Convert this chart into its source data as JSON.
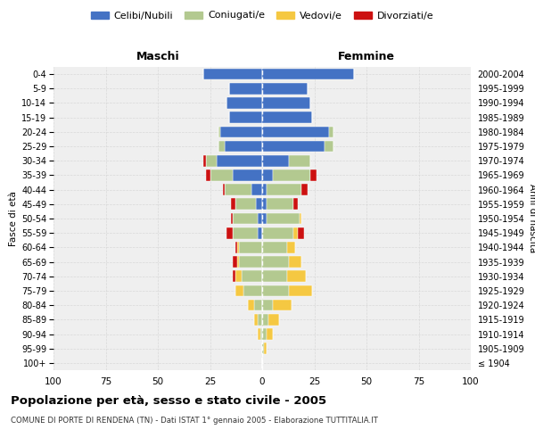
{
  "age_groups": [
    "100+",
    "95-99",
    "90-94",
    "85-89",
    "80-84",
    "75-79",
    "70-74",
    "65-69",
    "60-64",
    "55-59",
    "50-54",
    "45-49",
    "40-44",
    "35-39",
    "30-34",
    "25-29",
    "20-24",
    "15-19",
    "10-14",
    "5-9",
    "0-4"
  ],
  "birth_years": [
    "≤ 1904",
    "1905-1909",
    "1910-1914",
    "1915-1919",
    "1920-1924",
    "1925-1929",
    "1930-1934",
    "1935-1939",
    "1940-1944",
    "1945-1949",
    "1950-1954",
    "1955-1959",
    "1960-1964",
    "1965-1969",
    "1970-1974",
    "1975-1979",
    "1980-1984",
    "1985-1989",
    "1990-1994",
    "1995-1999",
    "2000-2004"
  ],
  "males": {
    "celibi": [
      0,
      0,
      0,
      0,
      0,
      0,
      0,
      0,
      0,
      2,
      2,
      3,
      5,
      14,
      22,
      18,
      20,
      16,
      17,
      16,
      28
    ],
    "coniugati": [
      0,
      0,
      1,
      2,
      4,
      9,
      10,
      11,
      11,
      12,
      12,
      10,
      13,
      11,
      5,
      3,
      1,
      0,
      0,
      0,
      0
    ],
    "vedovi": [
      0,
      0,
      1,
      2,
      3,
      4,
      3,
      1,
      1,
      0,
      0,
      0,
      0,
      0,
      0,
      0,
      0,
      0,
      0,
      0,
      0
    ],
    "divorziati": [
      0,
      0,
      0,
      0,
      0,
      0,
      1,
      2,
      1,
      3,
      1,
      2,
      1,
      2,
      1,
      0,
      0,
      0,
      0,
      0,
      0
    ]
  },
  "females": {
    "nubili": [
      0,
      0,
      0,
      0,
      0,
      0,
      0,
      0,
      0,
      0,
      2,
      2,
      2,
      5,
      13,
      30,
      32,
      24,
      23,
      22,
      44
    ],
    "coniugate": [
      0,
      1,
      2,
      3,
      5,
      13,
      12,
      13,
      12,
      15,
      16,
      13,
      17,
      18,
      10,
      4,
      2,
      0,
      0,
      0,
      0
    ],
    "vedove": [
      0,
      1,
      3,
      5,
      9,
      11,
      9,
      6,
      4,
      2,
      1,
      0,
      0,
      0,
      0,
      0,
      0,
      0,
      0,
      0,
      0
    ],
    "divorziate": [
      0,
      0,
      0,
      0,
      0,
      0,
      0,
      0,
      0,
      3,
      0,
      2,
      3,
      3,
      0,
      0,
      0,
      0,
      0,
      0,
      0
    ]
  },
  "colors": {
    "celibi": "#4472C4",
    "coniugati": "#B3C990",
    "vedovi": "#F5C842",
    "divorziati": "#CC1111"
  },
  "xlim": 100,
  "title": "Popolazione per età, sesso e stato civile - 2005",
  "subtitle": "COMUNE DI PORTE DI RENDENA (TN) - Dati ISTAT 1° gennaio 2005 - Elaborazione TUTTITALIA.IT",
  "ylabel_left": "Fasce di età",
  "ylabel_right": "Anni di nascita",
  "xlabel_left": "Maschi",
  "xlabel_right": "Femmine"
}
